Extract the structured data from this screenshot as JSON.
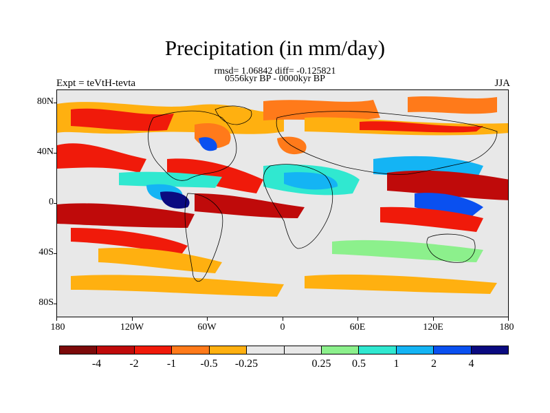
{
  "figure": {
    "title": "Precipitation (in mm/day)",
    "stats_line": "rmsd= 1.06842  diff= -0.125821",
    "period_line": "0556kyr BP - 0000kyr BP",
    "experiment_label": "Expt = teVtH-tevta",
    "season_label": "JJA"
  },
  "map": {
    "lat_labels": [
      "80N",
      "40N",
      "0",
      "40S",
      "80S"
    ],
    "lon_labels": [
      "180",
      "120W",
      "60W",
      "0",
      "60E",
      "120E",
      "180"
    ],
    "background": "#e8e8e8"
  },
  "colorbar": {
    "colors": [
      "#7c0a0a",
      "#bf0a0a",
      "#f01a0a",
      "#ff7a1a",
      "#ffb010",
      "#e8e8e8",
      "#e8e8e8",
      "#8cf08c",
      "#30e8d0",
      "#14b4f4",
      "#0a50f0",
      "#0a0a80"
    ],
    "labels": [
      "-4",
      "-2",
      "-1",
      "-0.5",
      "-0.25",
      "0.25",
      "0.5",
      "1",
      "2",
      "4"
    ]
  }
}
